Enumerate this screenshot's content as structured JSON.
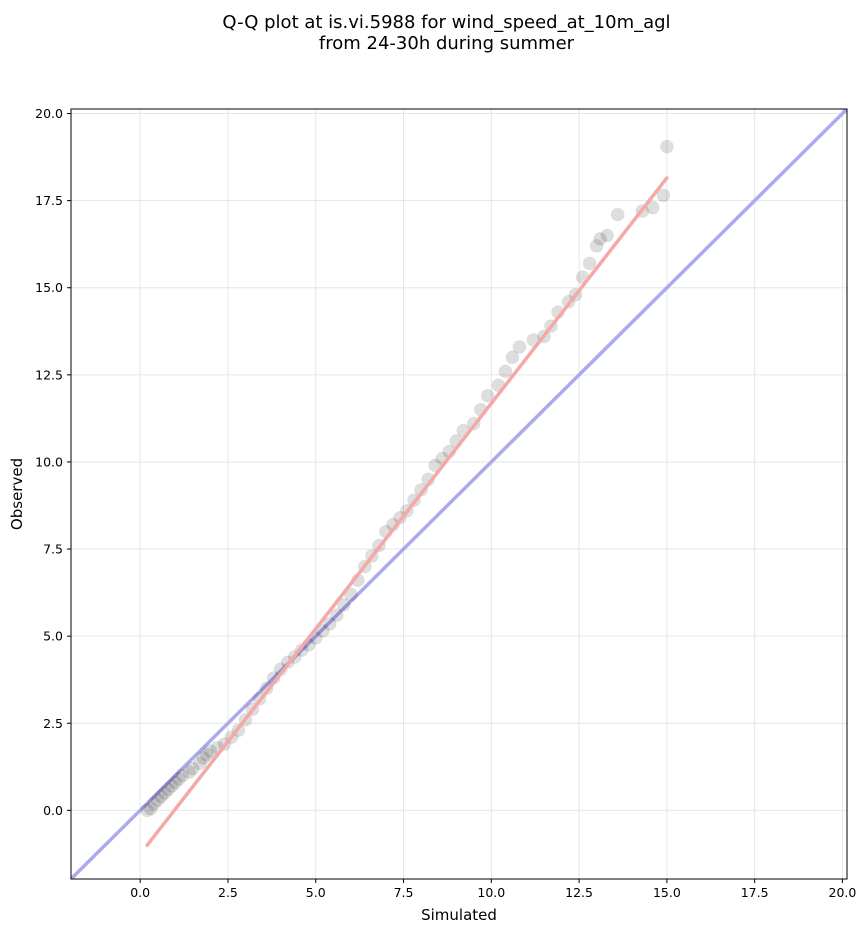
{
  "chart_data": {
    "type": "scatter",
    "title_lines": [
      "Q-Q plot at is.vi.5988 for wind_speed_at_10m_agl",
      "from 24-30h during summer"
    ],
    "xlabel": "Simulated",
    "ylabel": "Observed",
    "xlim": [
      -1.97,
      20.13
    ],
    "ylim": [
      -1.97,
      20.13
    ],
    "xticks": [
      0.0,
      2.5,
      5.0,
      7.5,
      10.0,
      12.5,
      15.0,
      17.5,
      20.0
    ],
    "yticks": [
      0.0,
      2.5,
      5.0,
      7.5,
      10.0,
      12.5,
      15.0,
      17.5,
      20.0
    ],
    "xtick_labels": [
      "0.0",
      "2.5",
      "5.0",
      "7.5",
      "10.0",
      "12.5",
      "15.0",
      "17.5",
      "20.0"
    ],
    "ytick_labels": [
      "0.0",
      "2.5",
      "5.0",
      "7.5",
      "10.0",
      "12.5",
      "15.0",
      "17.5",
      "20.0"
    ],
    "grid": true,
    "reference_line": {
      "name": "1:1",
      "points": [
        [
          -1.97,
          -1.97
        ],
        [
          20.13,
          20.13
        ]
      ],
      "color": "#aaaaf0"
    },
    "fit_line": {
      "name": "fit",
      "points": [
        [
          0.2,
          -1.0
        ],
        [
          15.0,
          18.15
        ]
      ],
      "color": "#f5a8a8"
    },
    "quantile_points": [
      [
        0.2,
        0.0
      ],
      [
        0.3,
        0.05
      ],
      [
        0.4,
        0.2
      ],
      [
        0.5,
        0.3
      ],
      [
        0.6,
        0.4
      ],
      [
        0.7,
        0.5
      ],
      [
        0.8,
        0.6
      ],
      [
        0.9,
        0.7
      ],
      [
        1.0,
        0.8
      ],
      [
        1.1,
        0.9
      ],
      [
        1.2,
        1.0
      ],
      [
        1.4,
        1.1
      ],
      [
        1.5,
        1.2
      ],
      [
        1.7,
        1.35
      ],
      [
        1.8,
        1.5
      ],
      [
        1.9,
        1.6
      ],
      [
        2.0,
        1.7
      ],
      [
        2.2,
        1.8
      ],
      [
        2.4,
        1.9
      ],
      [
        2.6,
        2.1
      ],
      [
        2.8,
        2.3
      ],
      [
        3.0,
        2.6
      ],
      [
        3.2,
        2.9
      ],
      [
        3.4,
        3.2
      ],
      [
        3.6,
        3.5
      ],
      [
        3.8,
        3.8
      ],
      [
        4.0,
        4.05
      ],
      [
        4.2,
        4.25
      ],
      [
        4.4,
        4.4
      ],
      [
        4.6,
        4.6
      ],
      [
        4.8,
        4.75
      ],
      [
        5.0,
        4.95
      ],
      [
        5.2,
        5.15
      ],
      [
        5.4,
        5.35
      ],
      [
        5.6,
        5.6
      ],
      [
        5.8,
        5.9
      ],
      [
        6.0,
        6.2
      ],
      [
        6.2,
        6.6
      ],
      [
        6.4,
        7.0
      ],
      [
        6.6,
        7.3
      ],
      [
        6.8,
        7.6
      ],
      [
        7.0,
        8.0
      ],
      [
        7.2,
        8.2
      ],
      [
        7.4,
        8.4
      ],
      [
        7.6,
        8.6
      ],
      [
        7.8,
        8.9
      ],
      [
        8.0,
        9.2
      ],
      [
        8.2,
        9.5
      ],
      [
        8.4,
        9.9
      ],
      [
        8.6,
        10.1
      ],
      [
        8.8,
        10.3
      ],
      [
        9.0,
        10.6
      ],
      [
        9.2,
        10.9
      ],
      [
        9.5,
        11.1
      ],
      [
        9.7,
        11.5
      ],
      [
        9.9,
        11.9
      ],
      [
        10.2,
        12.2
      ],
      [
        10.4,
        12.6
      ],
      [
        10.6,
        13.0
      ],
      [
        10.8,
        13.3
      ],
      [
        11.2,
        13.5
      ],
      [
        11.5,
        13.6
      ],
      [
        11.7,
        13.9
      ],
      [
        11.9,
        14.3
      ],
      [
        12.2,
        14.6
      ],
      [
        12.4,
        14.8
      ],
      [
        12.6,
        15.3
      ],
      [
        12.8,
        15.7
      ],
      [
        13.0,
        16.2
      ],
      [
        13.1,
        16.4
      ],
      [
        13.3,
        16.5
      ],
      [
        13.6,
        17.1
      ],
      [
        14.3,
        17.2
      ],
      [
        14.6,
        17.3
      ],
      [
        14.9,
        17.65
      ],
      [
        15.0,
        19.05
      ]
    ]
  }
}
